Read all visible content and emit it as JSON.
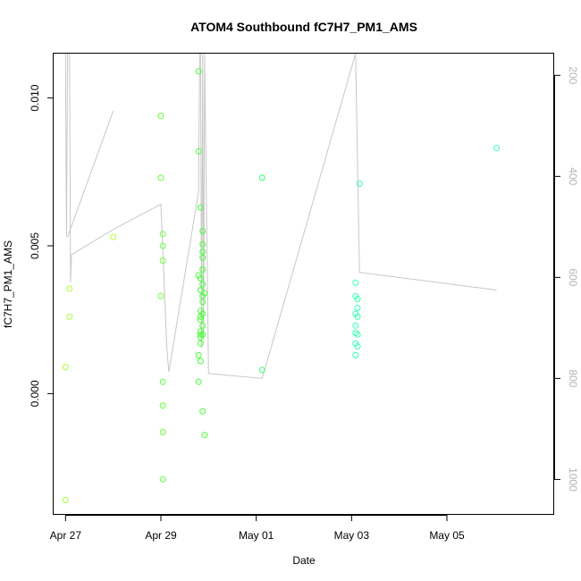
{
  "chart_data": {
    "type": "scatter",
    "title": "ATOM4 Southbound fC7H7_PM1_AMS",
    "xlabel": "Date",
    "ylabel": "fC7H7_PM1_AMS",
    "xlim": [
      "2016-04-26 18:00",
      "2016-05-07 06:00"
    ],
    "ylim": [
      -0.0041,
      0.0115
    ],
    "x_ticks": [
      {
        "t": "2016-04-27 00:00",
        "label": "Apr 27"
      },
      {
        "t": "2016-04-29 00:00",
        "label": "Apr 29"
      },
      {
        "t": "2016-05-01 00:00",
        "label": "May 01"
      },
      {
        "t": "2016-05-03 00:00",
        "label": "May 03"
      },
      {
        "t": "2016-05-05 00:00",
        "label": "May 05"
      }
    ],
    "y_ticks": [
      {
        "v": 0.0,
        "label": "0.000"
      },
      {
        "v": 0.005,
        "label": "0.005"
      },
      {
        "v": 0.01,
        "label": "0.010"
      }
    ],
    "y2_lim": [
      1070,
      157
    ],
    "y2_ticks": [
      {
        "v": 200,
        "label": "200"
      },
      {
        "v": 400,
        "label": "400"
      },
      {
        "v": 600,
        "label": "600"
      },
      {
        "v": 800,
        "label": "800"
      },
      {
        "v": 1000,
        "label": "1000"
      }
    ],
    "grid": false,
    "series": [
      {
        "kind": "points",
        "marker": "open-circle",
        "points": [
          {
            "t": "2016-04-27 00:00",
            "y": -0.0036,
            "color": "#a8ff3a"
          },
          {
            "t": "2016-04-27 00:00",
            "y": 0.0009,
            "color": "#a8ff3a"
          },
          {
            "t": "2016-04-27 02:00",
            "y": 0.0026,
            "color": "#a8ff3a"
          },
          {
            "t": "2016-04-27 02:00",
            "y": 0.00355,
            "color": "#a8ff3a"
          },
          {
            "t": "2016-04-28 00:00",
            "y": 0.0053,
            "color": "#b4ff3c"
          },
          {
            "t": "2016-04-29 00:00",
            "y": 0.0094,
            "color": "#66ff33"
          },
          {
            "t": "2016-04-29 00:00",
            "y": 0.0073,
            "color": "#66ff33"
          },
          {
            "t": "2016-04-29 01:00",
            "y": 0.0054,
            "color": "#66ff33"
          },
          {
            "t": "2016-04-29 01:00",
            "y": 0.005,
            "color": "#66ff33"
          },
          {
            "t": "2016-04-29 01:00",
            "y": 0.0045,
            "color": "#66ff33"
          },
          {
            "t": "2016-04-29 00:00",
            "y": 0.0033,
            "color": "#66ff33"
          },
          {
            "t": "2016-04-29 01:00",
            "y": 0.0004,
            "color": "#5cff33"
          },
          {
            "t": "2016-04-29 01:00",
            "y": -0.0004,
            "color": "#5cff33"
          },
          {
            "t": "2016-04-29 01:00",
            "y": -0.0013,
            "color": "#5cff33"
          },
          {
            "t": "2016-04-29 01:00",
            "y": -0.0029,
            "color": "#5cff33"
          },
          {
            "t": "2016-04-29 19:00",
            "y": 0.0109,
            "color": "#44ff33"
          },
          {
            "t": "2016-04-29 19:00",
            "y": 0.0082,
            "color": "#44ff33"
          },
          {
            "t": "2016-04-29 20:00",
            "y": 0.0063,
            "color": "#44ff33"
          },
          {
            "t": "2016-04-29 21:00",
            "y": 0.0055,
            "color": "#44ff33"
          },
          {
            "t": "2016-04-29 21:00",
            "y": 0.00505,
            "color": "#44ff33"
          },
          {
            "t": "2016-04-29 21:00",
            "y": 0.0048,
            "color": "#44ff33"
          },
          {
            "t": "2016-04-29 21:00",
            "y": 0.0046,
            "color": "#44ff33"
          },
          {
            "t": "2016-04-29 21:00",
            "y": 0.0042,
            "color": "#44ff33"
          },
          {
            "t": "2016-04-29 19:00",
            "y": 0.004,
            "color": "#44ff33"
          },
          {
            "t": "2016-04-29 20:00",
            "y": 0.0039,
            "color": "#44ff33"
          },
          {
            "t": "2016-04-29 21:00",
            "y": 0.0037,
            "color": "#44ff33"
          },
          {
            "t": "2016-04-29 20:00",
            "y": 0.0035,
            "color": "#44ff33"
          },
          {
            "t": "2016-04-29 22:00",
            "y": 0.0034,
            "color": "#44ff33"
          },
          {
            "t": "2016-04-29 21:00",
            "y": 0.0033,
            "color": "#44ff33"
          },
          {
            "t": "2016-04-29 21:00",
            "y": 0.0031,
            "color": "#44ff33"
          },
          {
            "t": "2016-04-29 20:00",
            "y": 0.0028,
            "color": "#44ff33"
          },
          {
            "t": "2016-04-29 21:00",
            "y": 0.0027,
            "color": "#44ff33"
          },
          {
            "t": "2016-04-29 20:00",
            "y": 0.0026,
            "color": "#44ff33"
          },
          {
            "t": "2016-04-29 20:00",
            "y": 0.0025,
            "color": "#44ff33"
          },
          {
            "t": "2016-04-29 21:00",
            "y": 0.0023,
            "color": "#44ff33"
          },
          {
            "t": "2016-04-29 20:00",
            "y": 0.0021,
            "color": "#44ff33"
          },
          {
            "t": "2016-04-29 20:00",
            "y": 0.002,
            "color": "#44ff33"
          },
          {
            "t": "2016-04-29 21:00",
            "y": 0.002,
            "color": "#44ff33"
          },
          {
            "t": "2016-04-29 20:00",
            "y": 0.0019,
            "color": "#44ff33"
          },
          {
            "t": "2016-04-29 20:00",
            "y": 0.0017,
            "color": "#44ff33"
          },
          {
            "t": "2016-04-29 19:00",
            "y": 0.0013,
            "color": "#44ff33"
          },
          {
            "t": "2016-04-29 20:00",
            "y": 0.0011,
            "color": "#44ff33"
          },
          {
            "t": "2016-04-29 19:00",
            "y": 0.0004,
            "color": "#44ff33"
          },
          {
            "t": "2016-04-29 21:00",
            "y": -0.0006,
            "color": "#44ff33"
          },
          {
            "t": "2016-04-29 22:00",
            "y": -0.0014,
            "color": "#44ff33"
          },
          {
            "t": "2016-05-01 03:00",
            "y": 0.0073,
            "color": "#33ff66"
          },
          {
            "t": "2016-05-01 03:00",
            "y": 0.0008,
            "color": "#33ff66"
          },
          {
            "t": "2016-05-03 04:00",
            "y": 0.0071,
            "color": "#33ffb0"
          },
          {
            "t": "2016-05-03 02:00",
            "y": 0.00375,
            "color": "#33ffb0"
          },
          {
            "t": "2016-05-03 02:00",
            "y": 0.0033,
            "color": "#33ffb0"
          },
          {
            "t": "2016-05-03 03:00",
            "y": 0.0032,
            "color": "#33ffb0"
          },
          {
            "t": "2016-05-03 03:00",
            "y": 0.0029,
            "color": "#33ffb0"
          },
          {
            "t": "2016-05-03 02:00",
            "y": 0.0027,
            "color": "#33ffb0"
          },
          {
            "t": "2016-05-03 03:00",
            "y": 0.0026,
            "color": "#33ffb0"
          },
          {
            "t": "2016-05-03 02:00",
            "y": 0.0023,
            "color": "#33ffb0"
          },
          {
            "t": "2016-05-03 02:00",
            "y": 0.00205,
            "color": "#33ffb0"
          },
          {
            "t": "2016-05-03 03:00",
            "y": 0.002,
            "color": "#33ffb0"
          },
          {
            "t": "2016-05-03 02:00",
            "y": 0.0017,
            "color": "#33ffb0"
          },
          {
            "t": "2016-05-03 03:00",
            "y": 0.0016,
            "color": "#33ffb0"
          },
          {
            "t": "2016-05-03 02:00",
            "y": 0.0013,
            "color": "#33ffb0"
          },
          {
            "t": "2016-05-06 01:00",
            "y": 0.0083,
            "color": "#33ffcc"
          }
        ]
      },
      {
        "kind": "line",
        "axis": "right",
        "color": "#c8c8c8",
        "points": [
          {
            "t": "2016-04-27 00:00",
            "y": 157
          },
          {
            "t": "2016-04-27 00:30",
            "y": 520
          },
          {
            "t": "2016-04-27 01:00",
            "y": 157
          },
          {
            "t": "2016-04-27 02:00",
            "y": 157
          },
          {
            "t": "2016-04-27 02:30",
            "y": 610
          },
          {
            "t": "2016-04-27 03:00",
            "y": 555
          },
          {
            "t": "2016-04-28 00:00",
            "y": 505
          },
          {
            "t": "2016-04-29 00:00",
            "y": 455
          },
          {
            "t": "2016-04-29 03:00",
            "y": 740
          },
          {
            "t": "2016-04-29 04:00",
            "y": 787
          },
          {
            "t": "2016-04-29 19:00",
            "y": 430
          },
          {
            "t": "2016-04-29 19:30",
            "y": 157
          },
          {
            "t": "2016-04-29 20:00",
            "y": 157
          },
          {
            "t": "2016-04-29 20:30",
            "y": 740
          },
          {
            "t": "2016-04-29 21:00",
            "y": 157
          },
          {
            "t": "2016-04-29 21:30",
            "y": 720
          },
          {
            "t": "2016-04-29 22:00",
            "y": 157
          },
          {
            "t": "2016-04-30 00:00",
            "y": 790
          },
          {
            "t": "2016-05-01 03:00",
            "y": 800
          },
          {
            "t": "2016-05-03 02:00",
            "y": 157
          },
          {
            "t": "2016-05-03 04:00",
            "y": 590
          },
          {
            "t": "2016-05-06 01:00",
            "y": 625
          }
        ]
      },
      {
        "kind": "line",
        "axis": "right",
        "color": "#c8c8c8",
        "points": [
          {
            "t": "2016-04-27 01:00",
            "y": 520
          },
          {
            "t": "2016-04-28 00:00",
            "y": 270
          }
        ]
      }
    ]
  }
}
